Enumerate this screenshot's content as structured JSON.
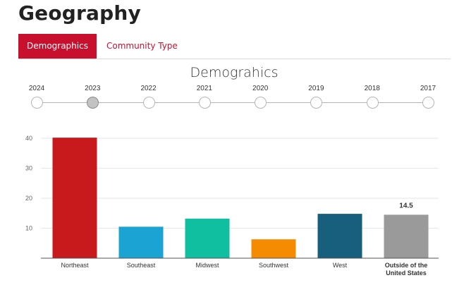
{
  "page": {
    "title": "Geography"
  },
  "tabs": [
    {
      "label": "Demographics",
      "active": true
    },
    {
      "label": "Community Type",
      "active": false
    }
  ],
  "chart_title": "Demograhics",
  "timeline": {
    "years": [
      "2024",
      "2023",
      "2022",
      "2021",
      "2020",
      "2019",
      "2018",
      "2017"
    ],
    "selected": "2023"
  },
  "colors": {
    "accent": "#c8102e"
  },
  "chart_data": {
    "type": "bar",
    "categories": [
      "Northeast",
      "Southeast",
      "Midwest",
      "Southwest",
      "West",
      "Outside of the United States"
    ],
    "values": [
      40.2,
      10.5,
      13.2,
      6.3,
      14.8,
      14.5
    ],
    "colors": [
      "#c8191d",
      "#1ba3d3",
      "#0fbf9f",
      "#f58b00",
      "#175f7d",
      "#9a9a9a"
    ],
    "highlighted_category": "Outside of the United States",
    "data_labels": [
      {
        "category": "Outside of the United States",
        "text": "14.5"
      }
    ],
    "yticks": [
      10,
      20,
      30,
      40
    ],
    "ylim": [
      0,
      40
    ],
    "grid": true,
    "title": "",
    "xlabel": "",
    "ylabel": ""
  }
}
